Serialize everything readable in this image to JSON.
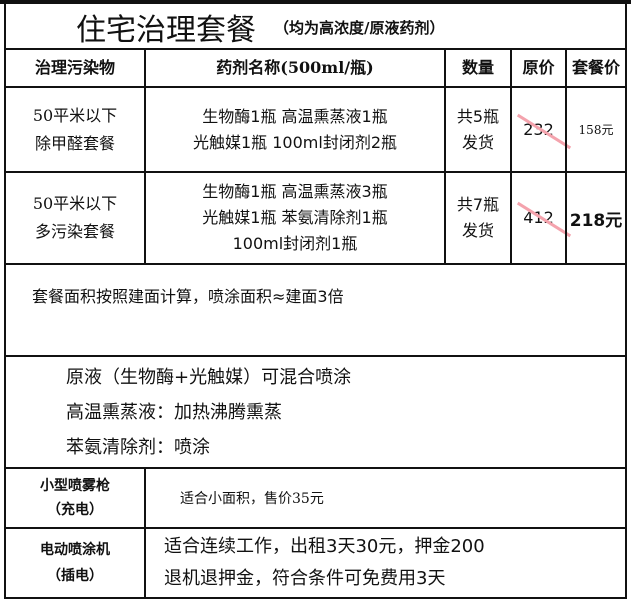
{
  "title": {
    "main": "住宅治理套餐",
    "sub": "（均为高浓度/原液药剂）"
  },
  "headers": [
    "治理污染物",
    "药剂名称(500ml/瓶)",
    "数量",
    "原价",
    "套餐价"
  ],
  "packages": [
    {
      "name": [
        "50平米以下",
        "除甲醛套餐"
      ],
      "items": [
        "生物酶1瓶  高温熏蒸液1瓶",
        "光触媒1瓶  100ml封闭剂2瓶"
      ],
      "qty": [
        "共5瓶",
        "发货"
      ],
      "original_price": "232",
      "package_price": "158元"
    },
    {
      "name": [
        "50平米以下",
        "多污染套餐"
      ],
      "items": [
        "生物酶1瓶 高温熏蒸液3瓶",
        "光触媒1瓶 苯氨清除剂1瓶",
        "100ml封闭剂1瓶"
      ],
      "qty": [
        "共7瓶",
        "发货"
      ],
      "original_price": "412",
      "package_price": "218元"
    }
  ],
  "note_area": "套餐面积按照建面计算，喷涂面积≈建面3倍",
  "usage": [
    "原液（生物酶+光触媒）可混合喷涂",
    "高温熏蒸液：加热沸腾熏蒸",
    "苯氨清除剂：喷涂"
  ],
  "equipment": [
    {
      "name": [
        "小型喷雾枪",
        "（充电）"
      ],
      "desc": [
        "适合小面积，售价35元"
      ]
    },
    {
      "name": [
        "电动喷涂机",
        "（插电）"
      ],
      "desc": [
        "适合连续工作，出租3天30元，押金200",
        "退机退押金，符合条件可免费用3天"
      ]
    }
  ],
  "colors": {
    "strike": "#f4a3ad",
    "border": "#111111"
  }
}
